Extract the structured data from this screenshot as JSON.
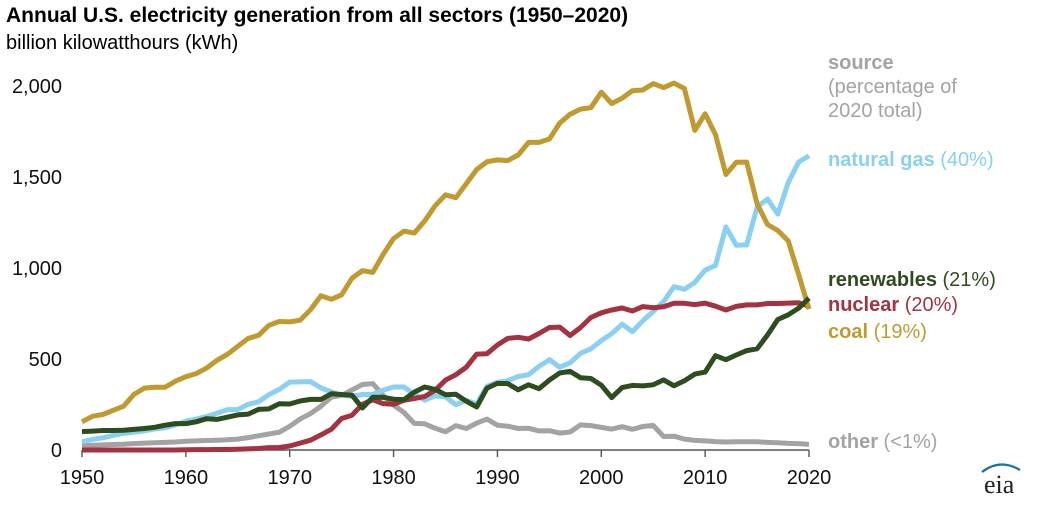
{
  "title": "Annual U.S. electricity generation from all sectors (1950–2020)",
  "subtitle": "billion kilowatthours (kWh)",
  "logo_text": "eia",
  "chart_data": {
    "type": "line",
    "ylim": [
      0,
      2000
    ],
    "xlim": [
      1950,
      2020
    ],
    "y_ticks": [
      0,
      500,
      1000,
      1500,
      2000
    ],
    "y_tick_labels": [
      "0",
      "500",
      "1,000",
      "1,500",
      "2,000"
    ],
    "x_ticks": [
      1950,
      1960,
      1970,
      1980,
      1990,
      2000,
      2010,
      2020
    ],
    "x_tick_labels": [
      "1950",
      "1960",
      "1970",
      "1980",
      "1990",
      "2000",
      "2010",
      "2020"
    ],
    "grid": false,
    "legend": "direct labels at right",
    "source_label": {
      "name": "source",
      "detail_line1": "(percentage of",
      "detail_line2": "2020 total)"
    },
    "x": [
      1950,
      1951,
      1952,
      1953,
      1954,
      1955,
      1956,
      1957,
      1958,
      1959,
      1960,
      1961,
      1962,
      1963,
      1964,
      1965,
      1966,
      1967,
      1968,
      1969,
      1970,
      1971,
      1972,
      1973,
      1974,
      1975,
      1976,
      1977,
      1978,
      1979,
      1980,
      1981,
      1982,
      1983,
      1984,
      1985,
      1986,
      1987,
      1988,
      1989,
      1990,
      1991,
      1992,
      1993,
      1994,
      1995,
      1996,
      1997,
      1998,
      1999,
      2000,
      2001,
      2002,
      2003,
      2004,
      2005,
      2006,
      2007,
      2008,
      2009,
      2010,
      2011,
      2012,
      2013,
      2014,
      2015,
      2016,
      2017,
      2018,
      2019,
      2020
    ],
    "series": [
      {
        "name": "coal",
        "share": "(19%)",
        "color": "#c09a2f",
        "values": [
          155,
          185,
          195,
          218,
          240,
          305,
          340,
          345,
          345,
          378,
          403,
          420,
          450,
          493,
          526,
          570,
          613,
          630,
          685,
          706,
          704,
          713,
          771,
          848,
          828,
          853,
          944,
          985,
          976,
          1075,
          1162,
          1203,
          1192,
          1259,
          1342,
          1402,
          1386,
          1464,
          1541,
          1584,
          1594,
          1590,
          1621,
          1690,
          1690,
          1709,
          1796,
          1845,
          1873,
          1881,
          1966,
          1904,
          1933,
          1974,
          1978,
          2013,
          1991,
          2016,
          1986,
          1756,
          1847,
          1733,
          1514,
          1581,
          1582,
          1352,
          1239,
          1206,
          1149,
          965,
          774
        ]
      },
      {
        "name": "natural gas",
        "share": "(40%)",
        "color": "#89d0f2",
        "values": [
          45,
          58,
          67,
          80,
          92,
          98,
          105,
          116,
          122,
          138,
          158,
          170,
          184,
          202,
          222,
          222,
          251,
          265,
          304,
          333,
          373,
          374,
          376,
          341,
          320,
          300,
          295,
          305,
          305,
          329,
          346,
          346,
          305,
          274,
          297,
          292,
          249,
          273,
          253,
          350,
          372,
          381,
          404,
          414,
          460,
          496,
          455,
          479,
          531,
          556,
          601,
          639,
          691,
          650,
          710,
          761,
          816,
          897,
          883,
          921,
          988,
          1014,
          1226,
          1125,
          1127,
          1335,
          1379,
          1296,
          1469,
          1582,
          1617
        ]
      },
      {
        "name": "nuclear",
        "share": "(20%)",
        "color": "#a33340",
        "values": [
          0,
          0,
          0,
          0,
          0,
          0,
          0,
          0,
          0,
          0,
          1,
          2,
          2,
          3,
          3,
          4,
          6,
          8,
          13,
          14,
          22,
          38,
          54,
          83,
          114,
          173,
          191,
          251,
          276,
          255,
          251,
          273,
          283,
          294,
          328,
          384,
          414,
          455,
          527,
          529,
          577,
          613,
          619,
          610,
          640,
          673,
          675,
          629,
          673,
          728,
          754,
          769,
          780,
          764,
          788,
          782,
          787,
          806,
          806,
          799,
          807,
          790,
          769,
          789,
          797,
          797,
          805,
          805,
          807,
          809,
          790
        ]
      },
      {
        "name": "renewables",
        "share": "(21%)",
        "color": "#2e4d1f",
        "values": [
          101,
          104,
          107,
          107,
          109,
          113,
          118,
          125,
          136,
          145,
          145,
          155,
          172,
          168,
          180,
          193,
          197,
          223,
          226,
          254,
          253,
          269,
          278,
          278,
          309,
          305,
          301,
          231,
          290,
          289,
          279,
          277,
          318,
          346,
          333,
          304,
          306,
          268,
          236,
          340,
          366,
          365,
          331,
          358,
          337,
          384,
          423,
          432,
          397,
          393,
          356,
          288,
          343,
          355,
          352,
          358,
          385,
          353,
          380,
          417,
          428,
          518,
          496,
          522,
          546,
          556,
          632,
          717,
          743,
          779,
          834
        ]
      },
      {
        "name": "other",
        "share": "(<1%)",
        "color": "#a3a3a3",
        "values": [
          25,
          26,
          28,
          30,
          32,
          35,
          38,
          40,
          42,
          44,
          48,
          50,
          52,
          54,
          56,
          60,
          68,
          78,
          88,
          98,
          130,
          170,
          200,
          240,
          290,
          300,
          330,
          360,
          365,
          300,
          246,
          206,
          146,
          144,
          119,
          100,
          134,
          118,
          148,
          170,
          136,
          131,
          118,
          119,
          105,
          106,
          93,
          99,
          138,
          134,
          124,
          115,
          128,
          114,
          129,
          135,
          74,
          76,
          60,
          53,
          50,
          46,
          44,
          45,
          45,
          45,
          42,
          40,
          36,
          35,
          31
        ]
      }
    ]
  }
}
